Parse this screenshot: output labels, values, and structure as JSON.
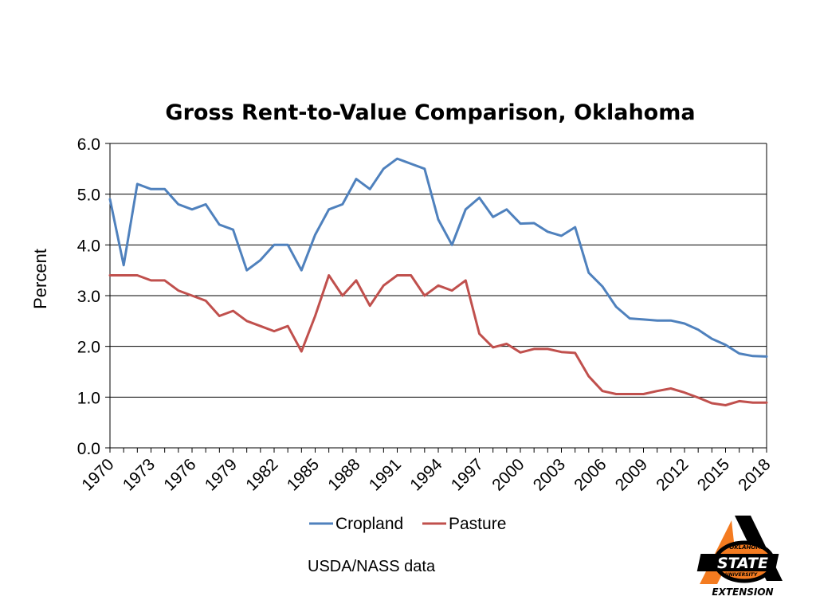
{
  "chart_data": {
    "type": "line",
    "title": "Gross Rent-to-Value Comparison, Oklahoma",
    "xlabel": "",
    "ylabel": "Percent",
    "ylim": [
      0,
      6
    ],
    "yticks": [
      "0.0",
      "1.0",
      "2.0",
      "3.0",
      "4.0",
      "5.0",
      "6.0"
    ],
    "xlim": [
      1970,
      2018
    ],
    "xticks": [
      "1970",
      "1973",
      "1976",
      "1979",
      "1982",
      "1985",
      "1988",
      "1991",
      "1994",
      "1997",
      "2000",
      "2003",
      "2006",
      "2009",
      "2012",
      "2015",
      "2018"
    ],
    "grid": true,
    "legend_position": "bottom",
    "x": [
      1970,
      1971,
      1972,
      1973,
      1974,
      1975,
      1976,
      1977,
      1978,
      1979,
      1980,
      1981,
      1982,
      1983,
      1984,
      1985,
      1986,
      1987,
      1988,
      1989,
      1990,
      1991,
      1992,
      1993,
      1994,
      1995,
      1996,
      1997,
      1998,
      1999,
      2000,
      2001,
      2002,
      2003,
      2004,
      2005,
      2006,
      2007,
      2008,
      2009,
      2010,
      2011,
      2012,
      2013,
      2014,
      2015,
      2016,
      2017,
      2018
    ],
    "series": [
      {
        "name": "Cropland",
        "color": "#4f81bd",
        "values": [
          4.9,
          3.6,
          5.2,
          5.1,
          5.1,
          4.8,
          4.7,
          4.8,
          4.4,
          4.3,
          3.5,
          3.7,
          4.0,
          4.0,
          3.5,
          4.2,
          4.7,
          4.8,
          5.3,
          5.1,
          5.5,
          5.7,
          5.6,
          5.5,
          4.5,
          4.0,
          4.7,
          4.93,
          4.55,
          4.7,
          4.42,
          4.43,
          4.26,
          4.18,
          4.35,
          3.45,
          3.18,
          2.78,
          2.55,
          2.53,
          2.51,
          2.51,
          2.45,
          2.33,
          2.15,
          2.03,
          1.86,
          1.81,
          1.8
        ]
      },
      {
        "name": "Pasture",
        "color": "#c0504d",
        "values": [
          3.4,
          3.4,
          3.4,
          3.3,
          3.3,
          3.1,
          3.0,
          2.9,
          2.6,
          2.7,
          2.5,
          2.4,
          2.3,
          2.4,
          1.9,
          2.6,
          3.4,
          3.0,
          3.3,
          2.8,
          3.2,
          3.4,
          3.4,
          3.0,
          3.2,
          3.1,
          3.3,
          2.25,
          1.98,
          2.05,
          1.88,
          1.95,
          1.95,
          1.89,
          1.87,
          1.41,
          1.12,
          1.06,
          1.06,
          1.06,
          1.12,
          1.17,
          1.09,
          0.99,
          0.88,
          0.84,
          0.92,
          0.89,
          0.89
        ]
      }
    ]
  },
  "footer": {
    "source": "USDA/NASS data"
  },
  "logo": {
    "top_text": "OKLAHOMA",
    "main_text": "STATE",
    "sub_text": "UNIVERSITY",
    "bottom_text": "EXTENSION",
    "orange": "#f47b20",
    "black": "#000000"
  }
}
